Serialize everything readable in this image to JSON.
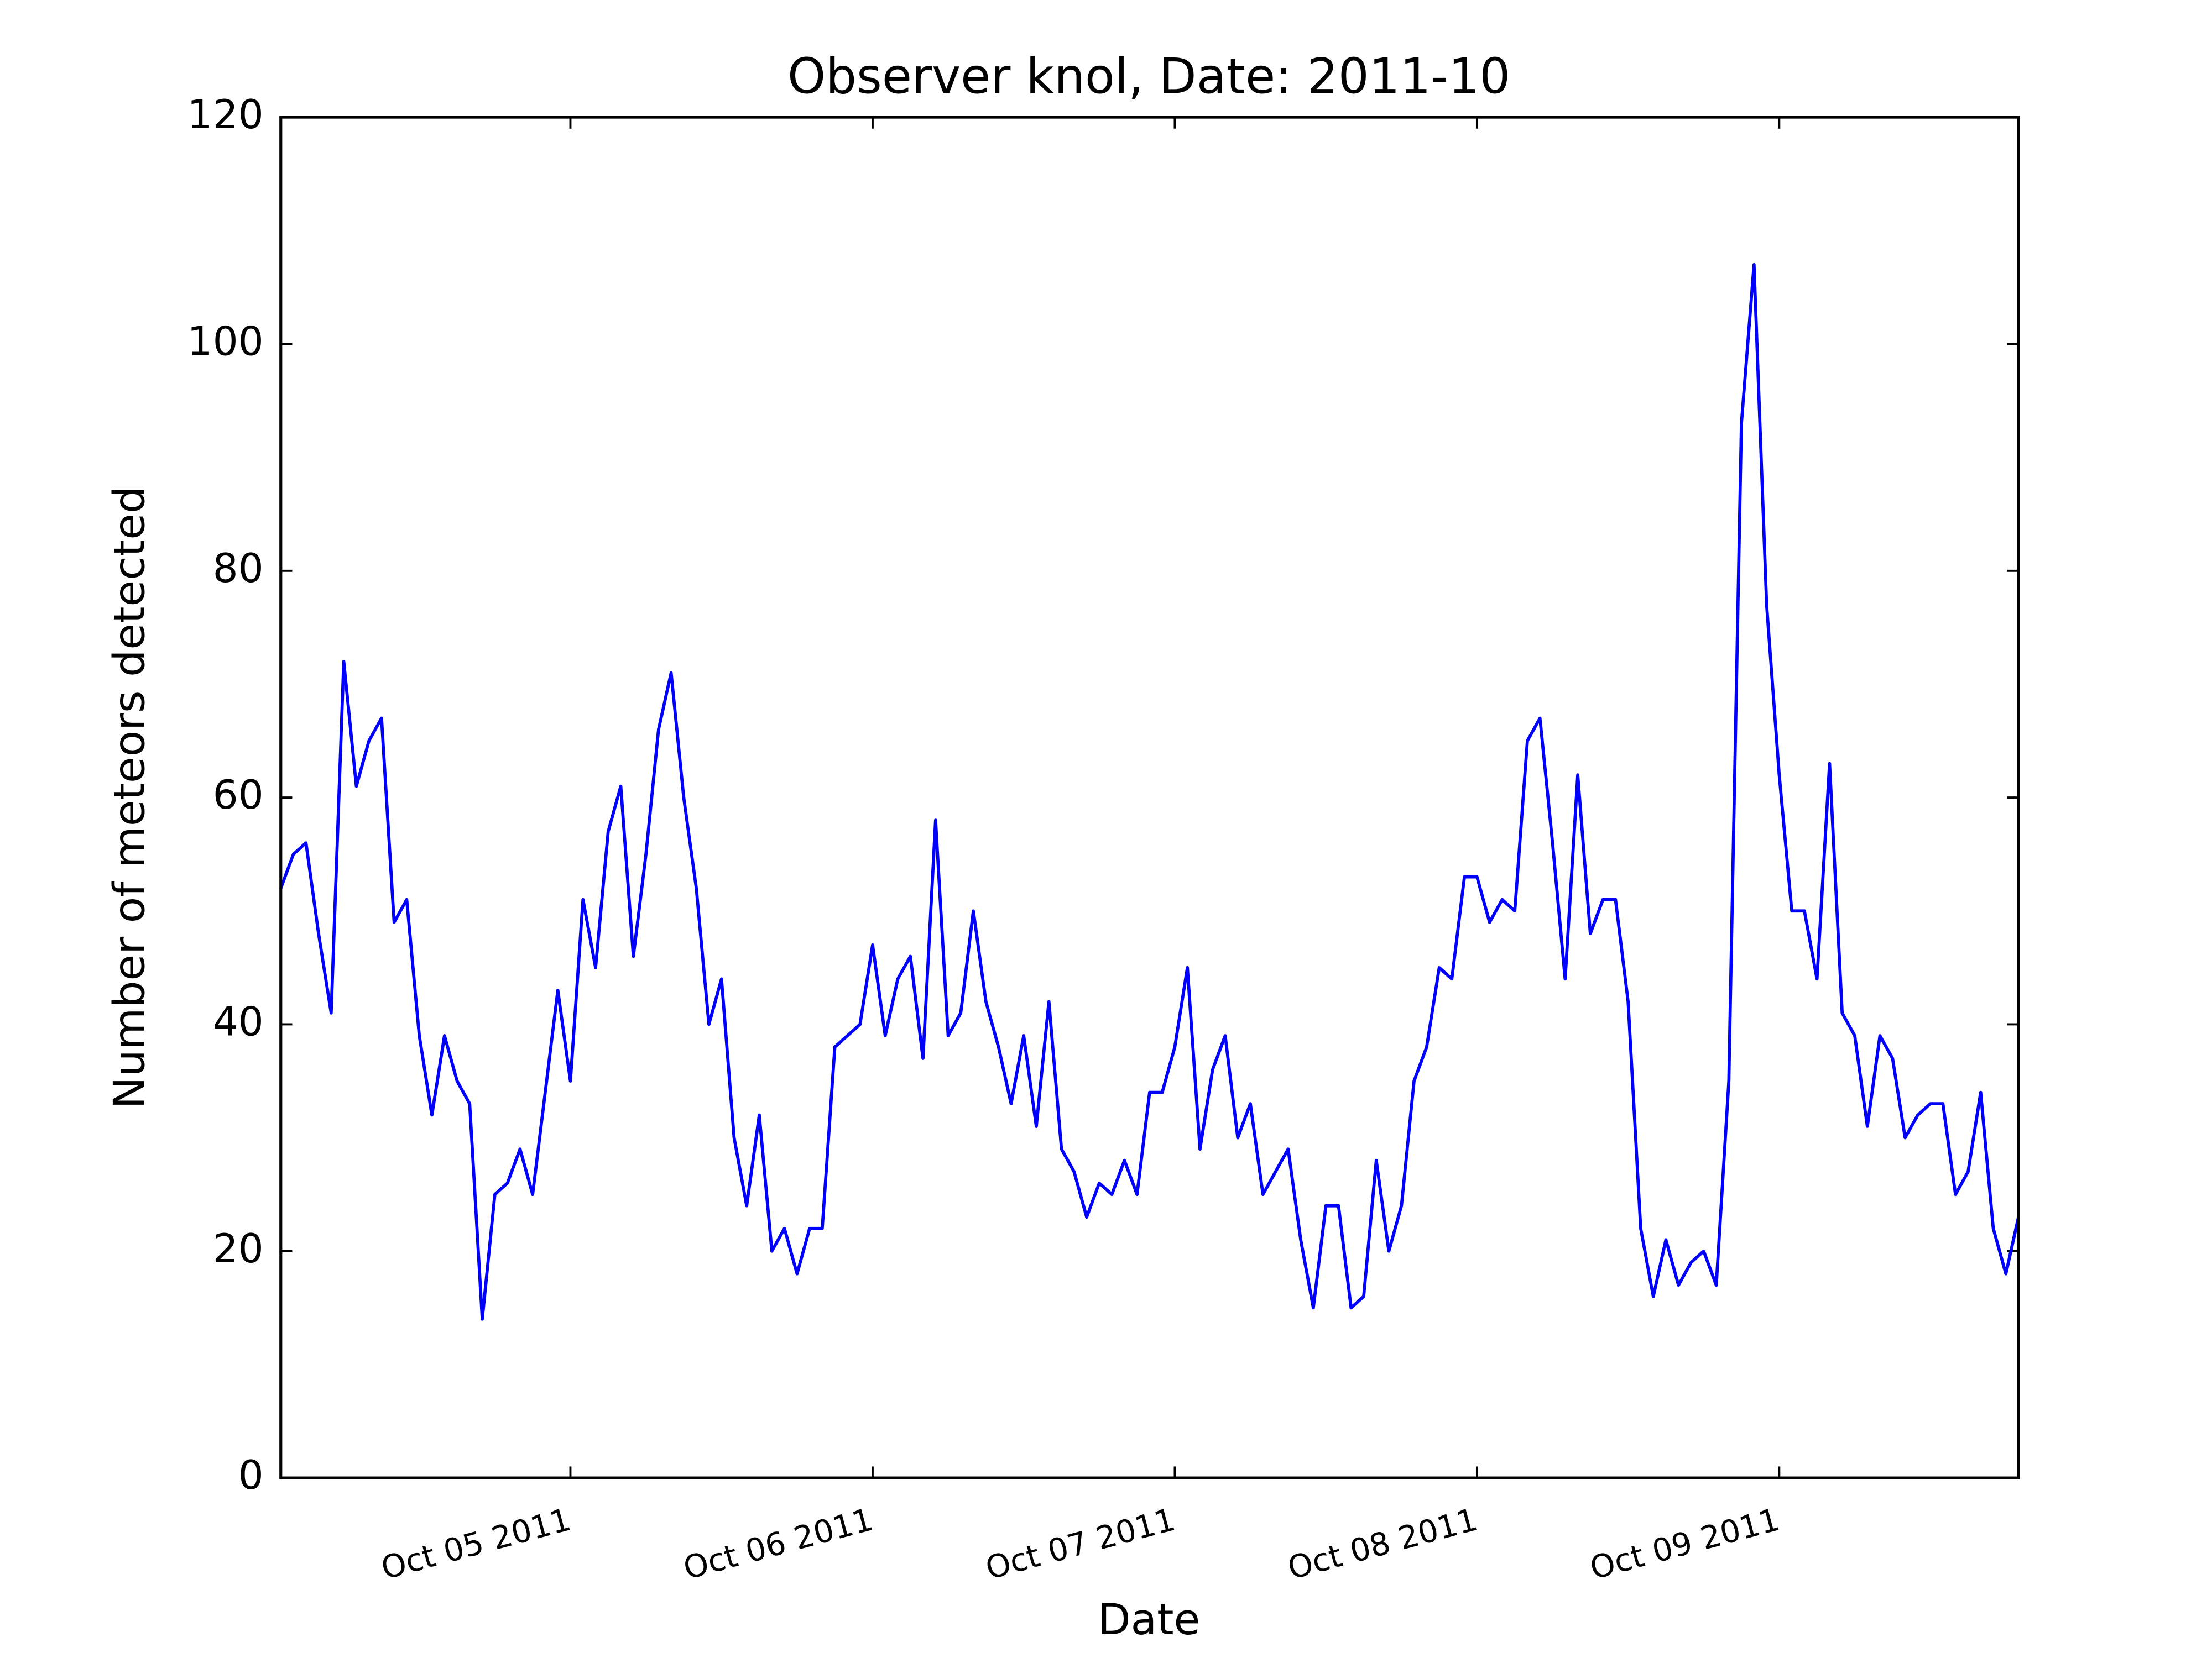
{
  "chart_data": {
    "type": "line",
    "title": "Observer knol, Date: 2011-10",
    "xlabel": "Date",
    "ylabel": "Number of meteors detected",
    "color": "#0000ff",
    "xlim": [
      "2011-10-04 01:00",
      "2011-10-09 19:00"
    ],
    "xticks": [
      {
        "value": "2011-10-05 00:00",
        "label": "Oct 05 2011"
      },
      {
        "value": "2011-10-06 00:00",
        "label": "Oct 06 2011"
      },
      {
        "value": "2011-10-07 00:00",
        "label": "Oct 07 2011"
      },
      {
        "value": "2011-10-08 00:00",
        "label": "Oct 08 2011"
      },
      {
        "value": "2011-10-09 00:00",
        "label": "Oct 09 2011"
      }
    ],
    "ylim": [
      0,
      120
    ],
    "yticks": [
      0,
      20,
      40,
      60,
      80,
      100,
      120
    ],
    "x": [
      "2011-10-04 01:00",
      "2011-10-04 02:00",
      "2011-10-04 03:00",
      "2011-10-04 04:00",
      "2011-10-04 05:00",
      "2011-10-04 06:00",
      "2011-10-04 07:00",
      "2011-10-04 08:00",
      "2011-10-04 09:00",
      "2011-10-04 10:00",
      "2011-10-04 11:00",
      "2011-10-04 12:00",
      "2011-10-04 13:00",
      "2011-10-04 14:00",
      "2011-10-04 15:00",
      "2011-10-04 16:00",
      "2011-10-04 17:00",
      "2011-10-04 18:00",
      "2011-10-04 19:00",
      "2011-10-04 20:00",
      "2011-10-04 21:00",
      "2011-10-04 22:00",
      "2011-10-04 23:00",
      "2011-10-05 00:00",
      "2011-10-05 01:00",
      "2011-10-05 02:00",
      "2011-10-05 03:00",
      "2011-10-05 04:00",
      "2011-10-05 05:00",
      "2011-10-05 06:00",
      "2011-10-05 07:00",
      "2011-10-05 08:00",
      "2011-10-05 09:00",
      "2011-10-05 10:00",
      "2011-10-05 11:00",
      "2011-10-05 12:00",
      "2011-10-05 13:00",
      "2011-10-05 14:00",
      "2011-10-05 15:00",
      "2011-10-05 16:00",
      "2011-10-05 17:00",
      "2011-10-05 18:00",
      "2011-10-05 19:00",
      "2011-10-05 20:00",
      "2011-10-05 21:00",
      "2011-10-05 22:00",
      "2011-10-05 23:00",
      "2011-10-06 00:00",
      "2011-10-06 01:00",
      "2011-10-06 02:00",
      "2011-10-06 03:00",
      "2011-10-06 04:00",
      "2011-10-06 05:00",
      "2011-10-06 06:00",
      "2011-10-06 07:00",
      "2011-10-06 08:00",
      "2011-10-06 09:00",
      "2011-10-06 10:00",
      "2011-10-06 11:00",
      "2011-10-06 12:00",
      "2011-10-06 13:00",
      "2011-10-06 14:00",
      "2011-10-06 15:00",
      "2011-10-06 16:00",
      "2011-10-06 17:00",
      "2011-10-06 18:00",
      "2011-10-06 19:00",
      "2011-10-06 20:00",
      "2011-10-06 21:00",
      "2011-10-06 22:00",
      "2011-10-06 23:00",
      "2011-10-07 00:00",
      "2011-10-07 01:00",
      "2011-10-07 02:00",
      "2011-10-07 03:00",
      "2011-10-07 04:00",
      "2011-10-07 05:00",
      "2011-10-07 06:00",
      "2011-10-07 07:00",
      "2011-10-07 08:00",
      "2011-10-07 09:00",
      "2011-10-07 10:00",
      "2011-10-07 11:00",
      "2011-10-07 12:00",
      "2011-10-07 13:00",
      "2011-10-07 14:00",
      "2011-10-07 15:00",
      "2011-10-07 16:00",
      "2011-10-07 17:00",
      "2011-10-07 18:00",
      "2011-10-07 19:00",
      "2011-10-07 20:00",
      "2011-10-07 21:00",
      "2011-10-07 22:00",
      "2011-10-07 23:00",
      "2011-10-08 00:00",
      "2011-10-08 01:00",
      "2011-10-08 02:00",
      "2011-10-08 03:00",
      "2011-10-08 04:00",
      "2011-10-08 05:00",
      "2011-10-08 06:00",
      "2011-10-08 07:00",
      "2011-10-08 08:00",
      "2011-10-08 09:00",
      "2011-10-08 10:00",
      "2011-10-08 11:00",
      "2011-10-08 12:00",
      "2011-10-08 13:00",
      "2011-10-08 14:00",
      "2011-10-08 15:00",
      "2011-10-08 16:00",
      "2011-10-08 17:00",
      "2011-10-08 18:00",
      "2011-10-08 19:00",
      "2011-10-08 20:00",
      "2011-10-08 21:00",
      "2011-10-08 22:00",
      "2011-10-08 23:00",
      "2011-10-09 00:00",
      "2011-10-09 01:00",
      "2011-10-09 02:00",
      "2011-10-09 03:00",
      "2011-10-09 04:00",
      "2011-10-09 05:00",
      "2011-10-09 06:00",
      "2011-10-09 07:00",
      "2011-10-09 08:00",
      "2011-10-09 09:00",
      "2011-10-09 10:00",
      "2011-10-09 11:00",
      "2011-10-09 12:00",
      "2011-10-09 13:00",
      "2011-10-09 14:00",
      "2011-10-09 15:00",
      "2011-10-09 16:00",
      "2011-10-09 17:00",
      "2011-10-09 18:00",
      "2011-10-09 19:00"
    ],
    "values": [
      52,
      55,
      56,
      48,
      41,
      72,
      61,
      65,
      67,
      49,
      51,
      39,
      32,
      39,
      35,
      33,
      14,
      25,
      26,
      29,
      25,
      34,
      43,
      35,
      51,
      45,
      57,
      61,
      46,
      55,
      66,
      71,
      60,
      52,
      40,
      44,
      30,
      24,
      32,
      20,
      22,
      18,
      22,
      22,
      38,
      39,
      40,
      47,
      39,
      44,
      46,
      37,
      58,
      39,
      41,
      50,
      42,
      38,
      33,
      39,
      31,
      42,
      29,
      27,
      23,
      26,
      25,
      28,
      25,
      34,
      34,
      38,
      45,
      29,
      36,
      39,
      30,
      33,
      25,
      27,
      29,
      21,
      15,
      24,
      24,
      15,
      16,
      28,
      20,
      24,
      35,
      38,
      45,
      44,
      53,
      53,
      49,
      51,
      50,
      65,
      67,
      56,
      44,
      62,
      48,
      51,
      51,
      42,
      22,
      16,
      21,
      17,
      19,
      20,
      17,
      35,
      93,
      107,
      77,
      62,
      50,
      50,
      44,
      63,
      41,
      39,
      31,
      39,
      37,
      30,
      32,
      33,
      33,
      25,
      27,
      34,
      22,
      18,
      23
    ]
  }
}
